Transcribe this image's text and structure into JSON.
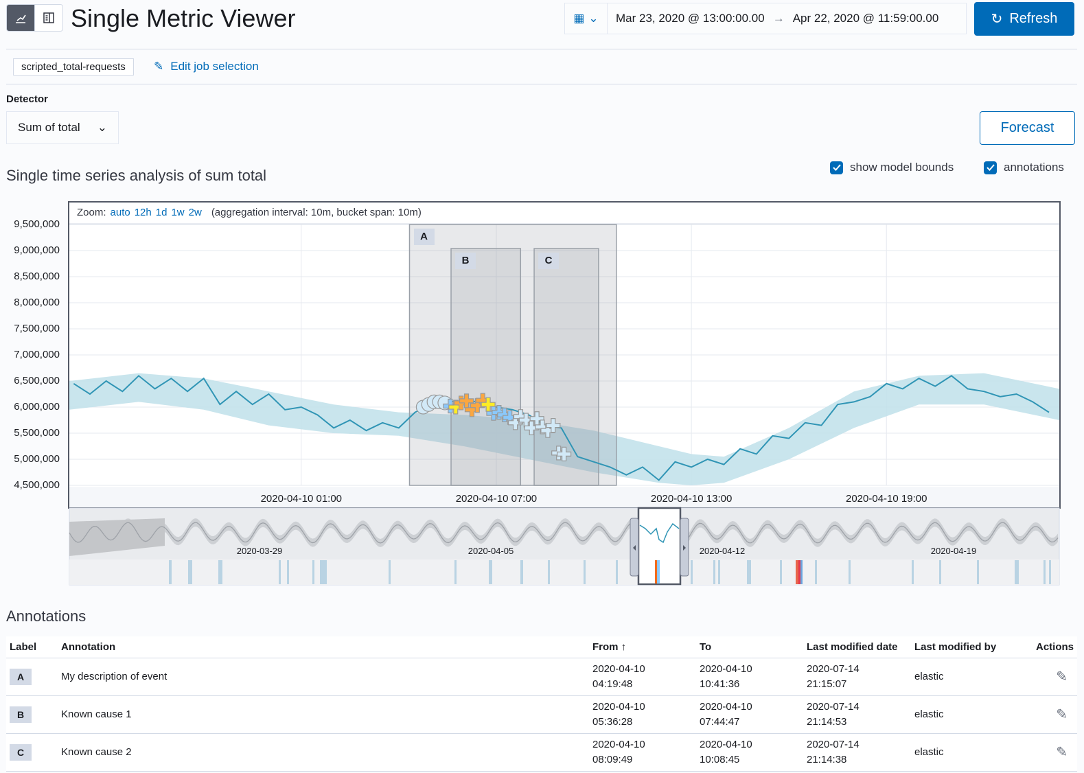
{
  "header": {
    "title": "Single Metric Viewer",
    "view_icons": [
      "chart-icon",
      "table-icon"
    ],
    "date_from": "Mar 23, 2020 @ 13:00:00.00",
    "date_arrow": "→",
    "date_to": "Apr 22, 2020 @ 11:59:00.00",
    "refresh_label": "Refresh"
  },
  "job": {
    "id": "scripted_total-requests",
    "edit_label": "Edit job selection"
  },
  "detector": {
    "label": "Detector",
    "selected": "Sum of total"
  },
  "forecast_label": "Forecast",
  "section_title": "Single time series analysis of sum total",
  "checkboxes": {
    "model_bounds": {
      "label": "show model bounds",
      "checked": true
    },
    "annotations": {
      "label": "annotations",
      "checked": true
    }
  },
  "zoom": {
    "prefix": "Zoom:",
    "options": [
      "auto",
      "12h",
      "1d",
      "1w",
      "2w"
    ],
    "info": "(aggregation interval: 10m, bucket span: 10m)"
  },
  "colors": {
    "accent": "#006bb8",
    "line": "#3095b5",
    "bounds": "#bfe0ea",
    "critical": "#fe5050",
    "major": "#fba740",
    "minor": "#fdec25",
    "warning": "#8bc8fb",
    "low": "#d2e9f7"
  },
  "chart_data": {
    "type": "line",
    "ylim": [
      4500000,
      9500000
    ],
    "y_ticks": [
      "9,500,000",
      "9,000,000",
      "8,500,000",
      "8,000,000",
      "7,500,000",
      "7,000,000",
      "6,500,000",
      "6,000,000",
      "5,500,000",
      "5,000,000",
      "4,500,000"
    ],
    "x_ticks": [
      "2020-04-10 01:00",
      "2020-04-10 07:00",
      "2020-04-10 13:00",
      "2020-04-10 19:00"
    ],
    "xlim": [
      "2020-04-09T17:52",
      "2020-04-11T00:19"
    ],
    "series": [
      {
        "values": [
          [
            "2020-04-09T18:00",
            6450000
          ],
          [
            "2020-04-09T18:30",
            6250000
          ],
          [
            "2020-04-09T19:00",
            6500000
          ],
          [
            "2020-04-09T19:30",
            6300000
          ],
          [
            "2020-04-09T20:00",
            6600000
          ],
          [
            "2020-04-09T20:30",
            6350000
          ],
          [
            "2020-04-09T21:00",
            6550000
          ],
          [
            "2020-04-09T21:30",
            6300000
          ],
          [
            "2020-04-09T22:00",
            6550000
          ],
          [
            "2020-04-09T22:30",
            6050000
          ],
          [
            "2020-04-09T23:00",
            6300000
          ],
          [
            "2020-04-09T23:30",
            6050000
          ],
          [
            "2020-04-10T00:00",
            6250000
          ],
          [
            "2020-04-10T00:30",
            5950000
          ],
          [
            "2020-04-10T01:00",
            6000000
          ],
          [
            "2020-04-10T01:30",
            5850000
          ],
          [
            "2020-04-10T02:00",
            5600000
          ],
          [
            "2020-04-10T02:30",
            5750000
          ],
          [
            "2020-04-10T03:00",
            5550000
          ],
          [
            "2020-04-10T03:30",
            5700000
          ],
          [
            "2020-04-10T04:00",
            5600000
          ],
          [
            "2020-04-10T04:30",
            5900000
          ],
          [
            "2020-04-10T05:00",
            6050000
          ],
          [
            "2020-04-10T05:30",
            6100000
          ],
          [
            "2020-04-10T06:00",
            6120000
          ],
          [
            "2020-04-10T06:30",
            6100000
          ],
          [
            "2020-04-10T07:00",
            6000000
          ],
          [
            "2020-04-10T07:30",
            5950000
          ],
          [
            "2020-04-10T08:00",
            5850000
          ],
          [
            "2020-04-10T08:30",
            5650000
          ],
          [
            "2020-04-10T09:00",
            5600000
          ],
          [
            "2020-04-10T09:30",
            5050000
          ],
          [
            "2020-04-10T10:00",
            4950000
          ],
          [
            "2020-04-10T10:30",
            4850000
          ],
          [
            "2020-04-10T11:00",
            4700000
          ],
          [
            "2020-04-10T11:30",
            4850000
          ],
          [
            "2020-04-10T12:00",
            4600000
          ],
          [
            "2020-04-10T12:30",
            4950000
          ],
          [
            "2020-04-10T13:00",
            4850000
          ],
          [
            "2020-04-10T13:30",
            5000000
          ],
          [
            "2020-04-10T14:00",
            4900000
          ],
          [
            "2020-04-10T14:30",
            5200000
          ],
          [
            "2020-04-10T15:00",
            5100000
          ],
          [
            "2020-04-10T15:30",
            5450000
          ],
          [
            "2020-04-10T16:00",
            5400000
          ],
          [
            "2020-04-10T16:30",
            5700000
          ],
          [
            "2020-04-10T17:00",
            5650000
          ],
          [
            "2020-04-10T17:30",
            6050000
          ],
          [
            "2020-04-10T18:00",
            6100000
          ],
          [
            "2020-04-10T18:30",
            6200000
          ],
          [
            "2020-04-10T19:00",
            6450000
          ],
          [
            "2020-04-10T19:30",
            6350000
          ],
          [
            "2020-04-10T20:00",
            6550000
          ],
          [
            "2020-04-10T20:30",
            6400000
          ],
          [
            "2020-04-10T21:00",
            6600000
          ],
          [
            "2020-04-10T21:30",
            6350000
          ],
          [
            "2020-04-10T22:00",
            6300000
          ],
          [
            "2020-04-10T22:30",
            6200000
          ],
          [
            "2020-04-10T23:00",
            6250000
          ],
          [
            "2020-04-10T23:30",
            6100000
          ],
          [
            "2020-04-11T00:00",
            5900000
          ]
        ]
      }
    ],
    "model_bounds": [
      [
        "2020-04-09T17:52",
        5950000,
        6500000
      ],
      [
        "2020-04-09T20:00",
        6100000,
        6650000
      ],
      [
        "2020-04-09T22:00",
        5950000,
        6550000
      ],
      [
        "2020-04-10T00:00",
        5650000,
        6300000
      ],
      [
        "2020-04-10T02:00",
        5500000,
        6050000
      ],
      [
        "2020-04-10T04:00",
        5450000,
        5900000
      ],
      [
        "2020-04-10T06:00",
        5250000,
        5850000
      ],
      [
        "2020-04-10T08:00",
        5000000,
        5750000
      ],
      [
        "2020-04-10T10:00",
        4750000,
        5550000
      ],
      [
        "2020-04-10T12:00",
        4550000,
        5250000
      ],
      [
        "2020-04-10T13:00",
        4500000,
        5100000
      ],
      [
        "2020-04-10T14:00",
        4550000,
        5050000
      ],
      [
        "2020-04-10T16:00",
        5000000,
        5600000
      ],
      [
        "2020-04-10T18:00",
        5600000,
        6300000
      ],
      [
        "2020-04-10T20:00",
        6050000,
        6600000
      ],
      [
        "2020-04-10T22:00",
        6050000,
        6650000
      ],
      [
        "2020-04-11T00:19",
        5750000,
        6350000
      ]
    ],
    "anomalies": [
      [
        "2020-04-10T04:45",
        6000000,
        "low",
        "circle"
      ],
      [
        "2020-04-10T04:55",
        6050000,
        "low",
        "circle"
      ],
      [
        "2020-04-10T05:05",
        6100000,
        "low",
        "circle"
      ],
      [
        "2020-04-10T05:15",
        6100000,
        "low",
        "circle"
      ],
      [
        "2020-04-10T05:25",
        6080000,
        "low",
        "circle"
      ],
      [
        "2020-04-10T05:35",
        6020000,
        "warning",
        "cross"
      ],
      [
        "2020-04-10T05:45",
        6000000,
        "minor",
        "cross"
      ],
      [
        "2020-04-10T05:55",
        6080000,
        "major",
        "cross"
      ],
      [
        "2020-04-10T06:05",
        6120000,
        "major",
        "cross"
      ],
      [
        "2020-04-10T06:15",
        5950000,
        "major",
        "cross"
      ],
      [
        "2020-04-10T06:25",
        6030000,
        "major",
        "cross"
      ],
      [
        "2020-04-10T06:35",
        6130000,
        "major",
        "cross"
      ],
      [
        "2020-04-10T06:45",
        6050000,
        "minor",
        "cross"
      ],
      [
        "2020-04-10T06:55",
        5880000,
        "warning",
        "cross"
      ],
      [
        "2020-04-10T07:05",
        5900000,
        "warning",
        "cross"
      ],
      [
        "2020-04-10T07:15",
        5850000,
        "warning",
        "cross"
      ],
      [
        "2020-04-10T07:25",
        5800000,
        "warning",
        "cross"
      ],
      [
        "2020-04-10T07:35",
        5700000,
        "low",
        "cross"
      ],
      [
        "2020-04-10T07:45",
        5820000,
        "low",
        "cross"
      ],
      [
        "2020-04-10T07:55",
        5750000,
        "low",
        "cross"
      ],
      [
        "2020-04-10T08:05",
        5600000,
        "low",
        "cross"
      ],
      [
        "2020-04-10T08:15",
        5780000,
        "low",
        "cross"
      ],
      [
        "2020-04-10T08:25",
        5620000,
        "low",
        "cross"
      ],
      [
        "2020-04-10T08:35",
        5550000,
        "low",
        "cross"
      ],
      [
        "2020-04-10T08:45",
        5650000,
        "low",
        "cross"
      ],
      [
        "2020-04-10T08:55",
        5120000,
        "low",
        "cross"
      ],
      [
        "2020-04-10T09:05",
        5100000,
        "low",
        "cross"
      ]
    ],
    "annotation_regions": [
      {
        "label": "A",
        "from": "2020-04-10T04:19:48",
        "to": "2020-04-10T10:41:36"
      },
      {
        "label": "B",
        "from": "2020-04-10T05:36:28",
        "to": "2020-04-10T07:44:47"
      },
      {
        "label": "C",
        "from": "2020-04-10T08:09:49",
        "to": "2020-04-10T10:08:45"
      }
    ],
    "context_ticks": [
      "2020-03-29",
      "2020-04-05",
      "2020-04-12",
      "2020-04-19"
    ]
  },
  "annotations": {
    "title": "Annotations",
    "columns": {
      "label": "Label",
      "annotation": "Annotation",
      "from": "From",
      "sort_icon": "↑",
      "to": "To",
      "modified_date": "Last modified date",
      "modified_by": "Last modified by",
      "actions": "Actions"
    },
    "rows": [
      {
        "label": "A",
        "annotation": "My description of event",
        "from_date": "2020-04-10",
        "from_time": "04:19:48",
        "to_date": "2020-04-10",
        "to_time": "10:41:36",
        "mod_date": "2020-07-14",
        "mod_time": "21:15:07",
        "by": "elastic"
      },
      {
        "label": "B",
        "annotation": "Known cause 1",
        "from_date": "2020-04-10",
        "from_time": "05:36:28",
        "to_date": "2020-04-10",
        "to_time": "07:44:47",
        "mod_date": "2020-07-14",
        "mod_time": "21:14:53",
        "by": "elastic"
      },
      {
        "label": "C",
        "annotation": "Known cause 2",
        "from_date": "2020-04-10",
        "from_time": "08:09:49",
        "to_date": "2020-04-10",
        "to_time": "10:08:45",
        "mod_date": "2020-07-14",
        "mod_time": "21:14:38",
        "by": "elastic"
      }
    ]
  }
}
